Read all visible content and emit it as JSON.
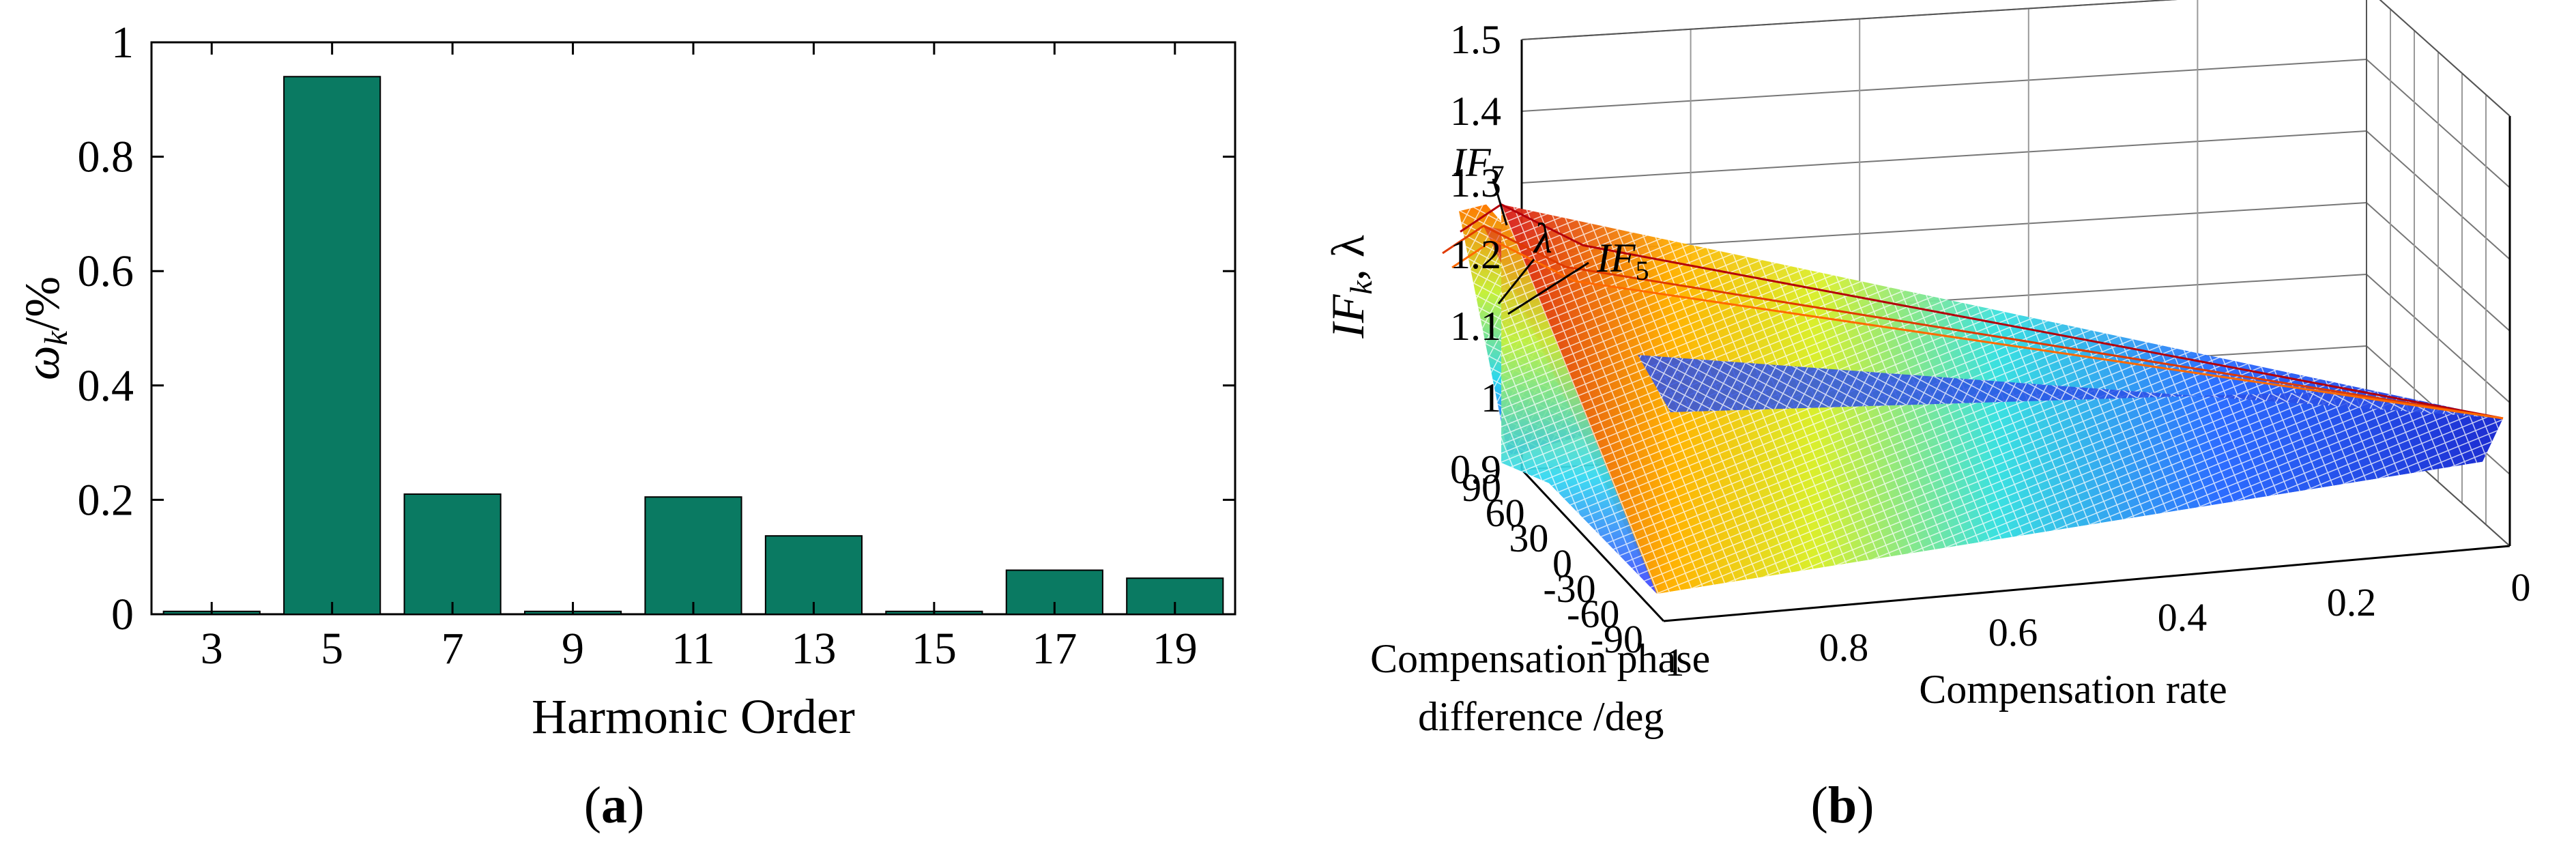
{
  "chart_data": [
    {
      "type": "bar",
      "panel_label": "a",
      "categories": [
        "3",
        "5",
        "7",
        "9",
        "11",
        "13",
        "15",
        "17",
        "19"
      ],
      "values": [
        0.005,
        0.94,
        0.21,
        0.005,
        0.205,
        0.137,
        0.005,
        0.077,
        0.063
      ],
      "bar_color": "#0a7a62",
      "ylim": [
        0,
        1
      ],
      "yticks": [
        "0",
        "0.2",
        "0.4",
        "0.6",
        "0.8",
        "1"
      ],
      "xlabel": "Harmonic Order",
      "ylabel_symbol": "ω",
      "ylabel_sub": "k",
      "ylabel_unit": "/%"
    },
    {
      "type": "surface3d",
      "panel_label": "b",
      "z_range": [
        0.9,
        1.5
      ],
      "zticks": [
        "0.9",
        "1",
        "1.1",
        "1.2",
        "1.3",
        "1.4",
        "1.5"
      ],
      "phase_ticks": [
        "90",
        "60",
        "30",
        "0",
        "-30",
        "-60",
        "-90"
      ],
      "rate_ticks": [
        "1",
        "0.8",
        "0.6",
        "0.4",
        "0.2",
        "0"
      ],
      "zlabel_parts": [
        "IF",
        "k",
        ", λ"
      ],
      "phase_label_lines": [
        "Compensation phase",
        "difference /deg"
      ],
      "rate_label": "Compensation rate",
      "annotations": [
        {
          "base": "IF",
          "sub": "7"
        },
        {
          "base": "λ",
          "sub": ""
        },
        {
          "base": "IF",
          "sub": "5"
        }
      ],
      "surfaces": [
        {
          "name": "IF7",
          "peak": 1.27
        },
        {
          "name": "λ",
          "peak": 1.24
        },
        {
          "name": "IF5",
          "peak": 1.22
        }
      ],
      "colormap": "jet"
    }
  ]
}
